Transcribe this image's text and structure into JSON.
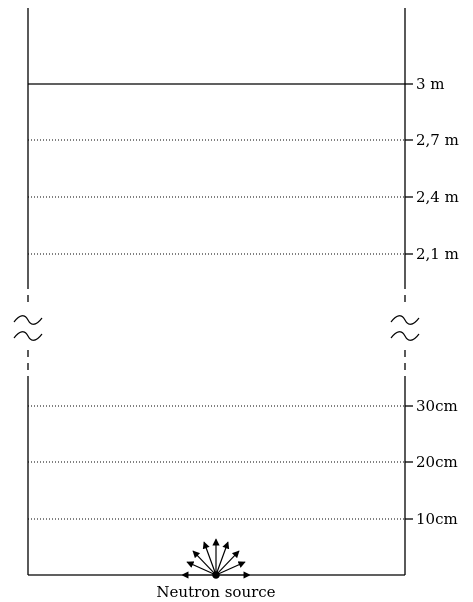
{
  "diagram": {
    "levels_upper": [
      {
        "label": "3 m",
        "style": "solid"
      },
      {
        "label": "2,7 m",
        "style": "dotted"
      },
      {
        "label": "2,4 m",
        "style": "dotted"
      },
      {
        "label": "2,1 m",
        "style": "dotted"
      }
    ],
    "levels_lower": [
      {
        "label": "30cm",
        "style": "dotted"
      },
      {
        "label": "20cm",
        "style": "dotted"
      },
      {
        "label": "10cm",
        "style": "dotted"
      }
    ],
    "source_label": "Neutron source",
    "break_symbol": "≈"
  }
}
